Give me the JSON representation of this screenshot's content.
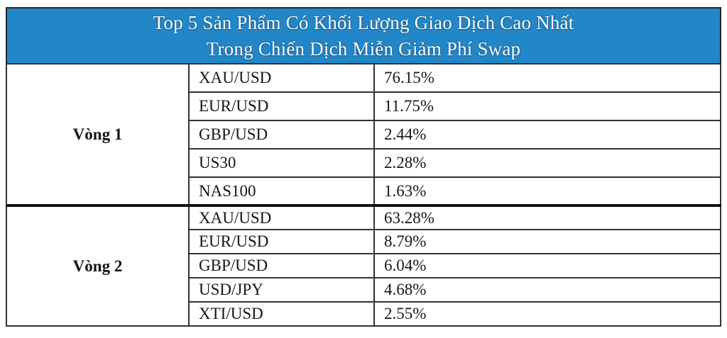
{
  "header": {
    "title_line1": "Top 5 Sản Phẩm Có Khối Lượng Giao Dịch Cao Nhất",
    "title_line2": "Trong Chiến Dịch Miễn Giảm Phí Swap",
    "band_color": "#2287C8",
    "title_color": "#FFFFFF"
  },
  "table": {
    "sections": [
      {
        "round_label": "Vòng 1",
        "rows": [
          {
            "product": "XAU/USD",
            "share": "76.15%"
          },
          {
            "product": "EUR/USD",
            "share": "11.75%"
          },
          {
            "product": "GBP/USD",
            "share": "2.44%"
          },
          {
            "product": "US30",
            "share": "2.28%"
          },
          {
            "product": "NAS100",
            "share": "1.63%"
          }
        ]
      },
      {
        "round_label": "Vòng 2",
        "rows": [
          {
            "product": "XAU/USD",
            "share": "63.28%"
          },
          {
            "product": "EUR/USD",
            "share": "8.79%"
          },
          {
            "product": "GBP/USD",
            "share": "6.04%"
          },
          {
            "product": "USD/JPY",
            "share": "4.68%"
          },
          {
            "product": "XTI/USD",
            "share": "2.55%"
          }
        ]
      }
    ]
  },
  "chart_data": {
    "type": "table",
    "title": "Top 5 Sản Phẩm Có Khối Lượng Giao Dịch Cao Nhất Trong Chiến Dịch Miễn Giảm Phí Swap",
    "series": [
      {
        "name": "Vòng 1",
        "categories": [
          "XAU/USD",
          "EUR/USD",
          "GBP/USD",
          "US30",
          "NAS100"
        ],
        "values": [
          76.15,
          11.75,
          2.44,
          2.28,
          1.63
        ]
      },
      {
        "name": "Vòng 2",
        "categories": [
          "XAU/USD",
          "EUR/USD",
          "GBP/USD",
          "USD/JPY",
          "XTI/USD"
        ],
        "values": [
          63.28,
          8.79,
          6.04,
          4.68,
          2.55
        ]
      }
    ],
    "unit": "%"
  }
}
